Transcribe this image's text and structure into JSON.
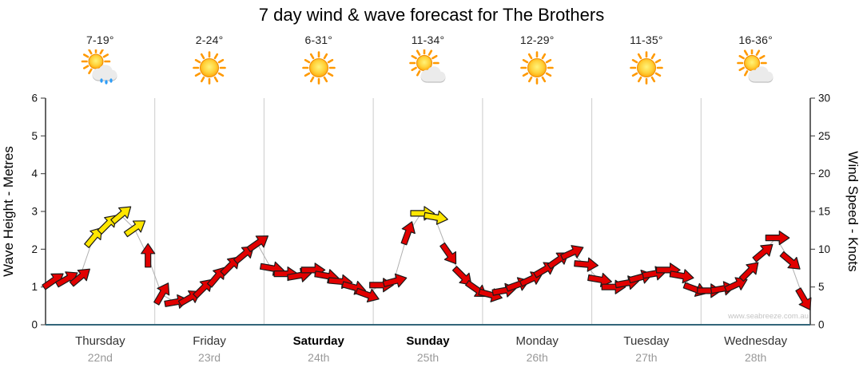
{
  "title": "7 day wind & wave forecast for The Brothers",
  "watermark": "www.seabreeze.com.au",
  "axes": {
    "left_label": "Wave Height - Metres",
    "right_label": "Wind Speed - Knots",
    "left_ticks": [
      0,
      1,
      2,
      3,
      4,
      5,
      6
    ],
    "right_ticks": [
      0,
      5,
      10,
      15,
      20,
      25,
      30
    ]
  },
  "days": [
    {
      "name": "Thursday",
      "date": "22nd",
      "temp": "7-19°",
      "icon": "sun-cloud-rain",
      "bold": false
    },
    {
      "name": "Friday",
      "date": "23rd",
      "temp": "2-24°",
      "icon": "sun",
      "bold": false
    },
    {
      "name": "Saturday",
      "date": "24th",
      "temp": "6-31°",
      "icon": "sun",
      "bold": true
    },
    {
      "name": "Sunday",
      "date": "25th",
      "temp": "11-34°",
      "icon": "sun-cloud",
      "bold": true
    },
    {
      "name": "Monday",
      "date": "26th",
      "temp": "12-29°",
      "icon": "sun",
      "bold": false
    },
    {
      "name": "Tuesday",
      "date": "27th",
      "temp": "11-35°",
      "icon": "sun",
      "bold": false
    },
    {
      "name": "Wednesday",
      "date": "28th",
      "temp": "16-36°",
      "icon": "sun-cloud",
      "bold": false
    }
  ],
  "colors": {
    "arrow_red": "#e10000",
    "arrow_yellow": "#ffe600",
    "arrow_outline": "#1a1a1a",
    "axis": "#333333",
    "baseline": "#33667a",
    "gridline": "#cccccc",
    "connector": "#b0b0b0"
  },
  "chart_data": {
    "type": "line",
    "title": "7 day wind & wave forecast for The Brothers",
    "ylabel": "Wave Height - Metres",
    "y2label": "Wind Speed - Knots",
    "ylim": [
      0,
      6
    ],
    "y2lim": [
      0,
      30
    ],
    "x_unit": "days (8 samples per day)",
    "arrow_color_meaning": {
      "r": "red wind arrow",
      "y": "yellow wind arrow (stronger wind)"
    },
    "series": [
      {
        "day": "Thursday",
        "wave": [
          1.15,
          1.2,
          1.25,
          2.3,
          2.65,
          2.9,
          2.55,
          1.8
        ],
        "dir": [
          -35,
          -30,
          -40,
          -50,
          -45,
          -40,
          -35,
          -90
        ],
        "color": [
          "r",
          "r",
          "r",
          "y",
          "y",
          "y",
          "y",
          "r"
        ]
      },
      {
        "day": "Friday",
        "wave": [
          0.8,
          0.6,
          0.7,
          0.95,
          1.25,
          1.55,
          1.85,
          2.15
        ],
        "dir": [
          -60,
          -10,
          -30,
          -45,
          -50,
          -45,
          -40,
          -35
        ],
        "color": [
          "r",
          "r",
          "r",
          "r",
          "r",
          "r",
          "r",
          "r"
        ]
      },
      {
        "day": "Saturday",
        "wave": [
          1.5,
          1.35,
          1.3,
          1.45,
          1.3,
          1.15,
          1.0,
          0.8
        ],
        "dir": [
          10,
          0,
          -10,
          0,
          10,
          5,
          15,
          20
        ],
        "color": [
          "r",
          "r",
          "r",
          "r",
          "r",
          "r",
          "r",
          "r"
        ]
      },
      {
        "day": "Sunday",
        "wave": [
          1.05,
          1.15,
          2.4,
          2.95,
          2.85,
          1.9,
          1.3,
          0.95
        ],
        "dir": [
          0,
          -15,
          -70,
          0,
          10,
          55,
          45,
          35
        ],
        "color": [
          "r",
          "r",
          "r",
          "y",
          "y",
          "r",
          "r",
          "r"
        ]
      },
      {
        "day": "Monday",
        "wave": [
          0.8,
          0.9,
          1.05,
          1.2,
          1.45,
          1.7,
          1.9,
          1.6
        ],
        "dir": [
          15,
          -10,
          -20,
          -25,
          -30,
          -35,
          -25,
          5
        ],
        "color": [
          "r",
          "r",
          "r",
          "r",
          "r",
          "r",
          "r",
          "r"
        ]
      },
      {
        "day": "Tuesday",
        "wave": [
          1.2,
          1.0,
          1.1,
          1.25,
          1.35,
          1.45,
          1.3,
          0.95
        ],
        "dir": [
          10,
          0,
          -10,
          -15,
          -10,
          0,
          10,
          20
        ],
        "color": [
          "r",
          "r",
          "r",
          "r",
          "r",
          "r",
          "r",
          "r"
        ]
      },
      {
        "day": "Wednesday",
        "wave": [
          0.9,
          0.95,
          1.05,
          1.4,
          1.9,
          2.3,
          1.7,
          0.7
        ],
        "dir": [
          0,
          -10,
          -25,
          -45,
          -40,
          0,
          40,
          60
        ],
        "color": [
          "r",
          "r",
          "r",
          "r",
          "r",
          "r",
          "r",
          "r"
        ]
      }
    ]
  }
}
